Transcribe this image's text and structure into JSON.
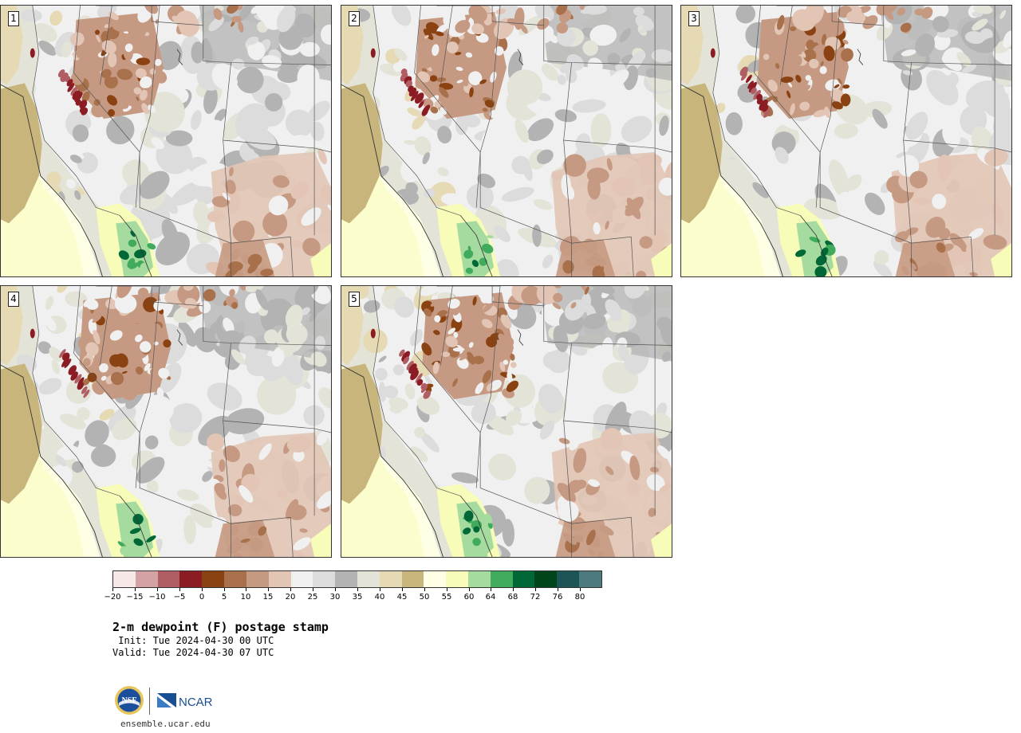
{
  "stamps": [
    {
      "label": "1",
      "variant": 0
    },
    {
      "label": "2",
      "variant": 1
    },
    {
      "label": "3",
      "variant": 2
    },
    {
      "label": "4",
      "variant": 3
    },
    {
      "label": "5",
      "variant": 4
    }
  ],
  "colorbar": {
    "colors": [
      "#f7e8e8",
      "#d4a1a4",
      "#b05d63",
      "#8c1c24",
      "#8a4213",
      "#a8714c",
      "#c69a82",
      "#e2c5b5",
      "#f0f0f0",
      "#dcdcdc",
      "#b3b3b3",
      "#e3e3d7",
      "#e6dab5",
      "#c8b57c",
      "#ffffe5",
      "#f7fcb9",
      "#a6dba0",
      "#41ab5d",
      "#006837",
      "#00441b",
      "#1d5456",
      "#4d7b7d"
    ],
    "ticks": [
      "−20",
      "−15",
      "−10",
      "−5",
      "0",
      "5",
      "10",
      "15",
      "20",
      "25",
      "30",
      "35",
      "40",
      "45",
      "50",
      "55",
      "60",
      "64",
      "68",
      "72",
      "76",
      "80"
    ]
  },
  "title": "2-m dewpoint (F) postage stamp",
  "init": " Init: Tue 2024-04-30 00 UTC",
  "valid": "Valid: Tue 2024-04-30 07 UTC",
  "logos": {
    "nsf": "NSF",
    "ncar": "NCAR"
  },
  "footer": "ensemble.ucar.edu"
}
